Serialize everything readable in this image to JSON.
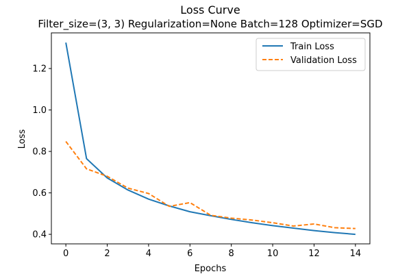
{
  "chart_data": {
    "type": "line",
    "title": "Loss Curve",
    "subtitle": "Filter_size=(3, 3) Regularization=None Batch=128 Optimizer=SGD",
    "xlabel": "Epochs",
    "ylabel": "Loss",
    "xlim": [
      -0.7,
      14.7
    ],
    "ylim": [
      0.354,
      1.372
    ],
    "xticks": [
      0,
      2,
      4,
      6,
      8,
      10,
      12,
      14
    ],
    "yticks": [
      0.4,
      0.6,
      0.8,
      1.0,
      1.2
    ],
    "ytick_labels": [
      "0.4",
      "0.6",
      "0.8",
      "1.0",
      "1.2"
    ],
    "x": [
      0,
      1,
      2,
      3,
      4,
      5,
      6,
      7,
      8,
      9,
      10,
      11,
      12,
      13,
      14
    ],
    "series": [
      {
        "name": "Train Loss",
        "color": "#1f77b4",
        "style": "solid",
        "values": [
          1.325,
          0.765,
          0.672,
          0.614,
          0.57,
          0.537,
          0.509,
          0.49,
          0.472,
          0.456,
          0.442,
          0.43,
          0.418,
          0.408,
          0.4
        ]
      },
      {
        "name": "Validation Loss",
        "color": "#ff7f0e",
        "style": "dashed",
        "values": [
          0.848,
          0.716,
          0.68,
          0.623,
          0.597,
          0.535,
          0.553,
          0.492,
          0.478,
          0.469,
          0.456,
          0.44,
          0.45,
          0.432,
          0.428
        ]
      }
    ],
    "grid": false,
    "legend_position": "top-right"
  }
}
